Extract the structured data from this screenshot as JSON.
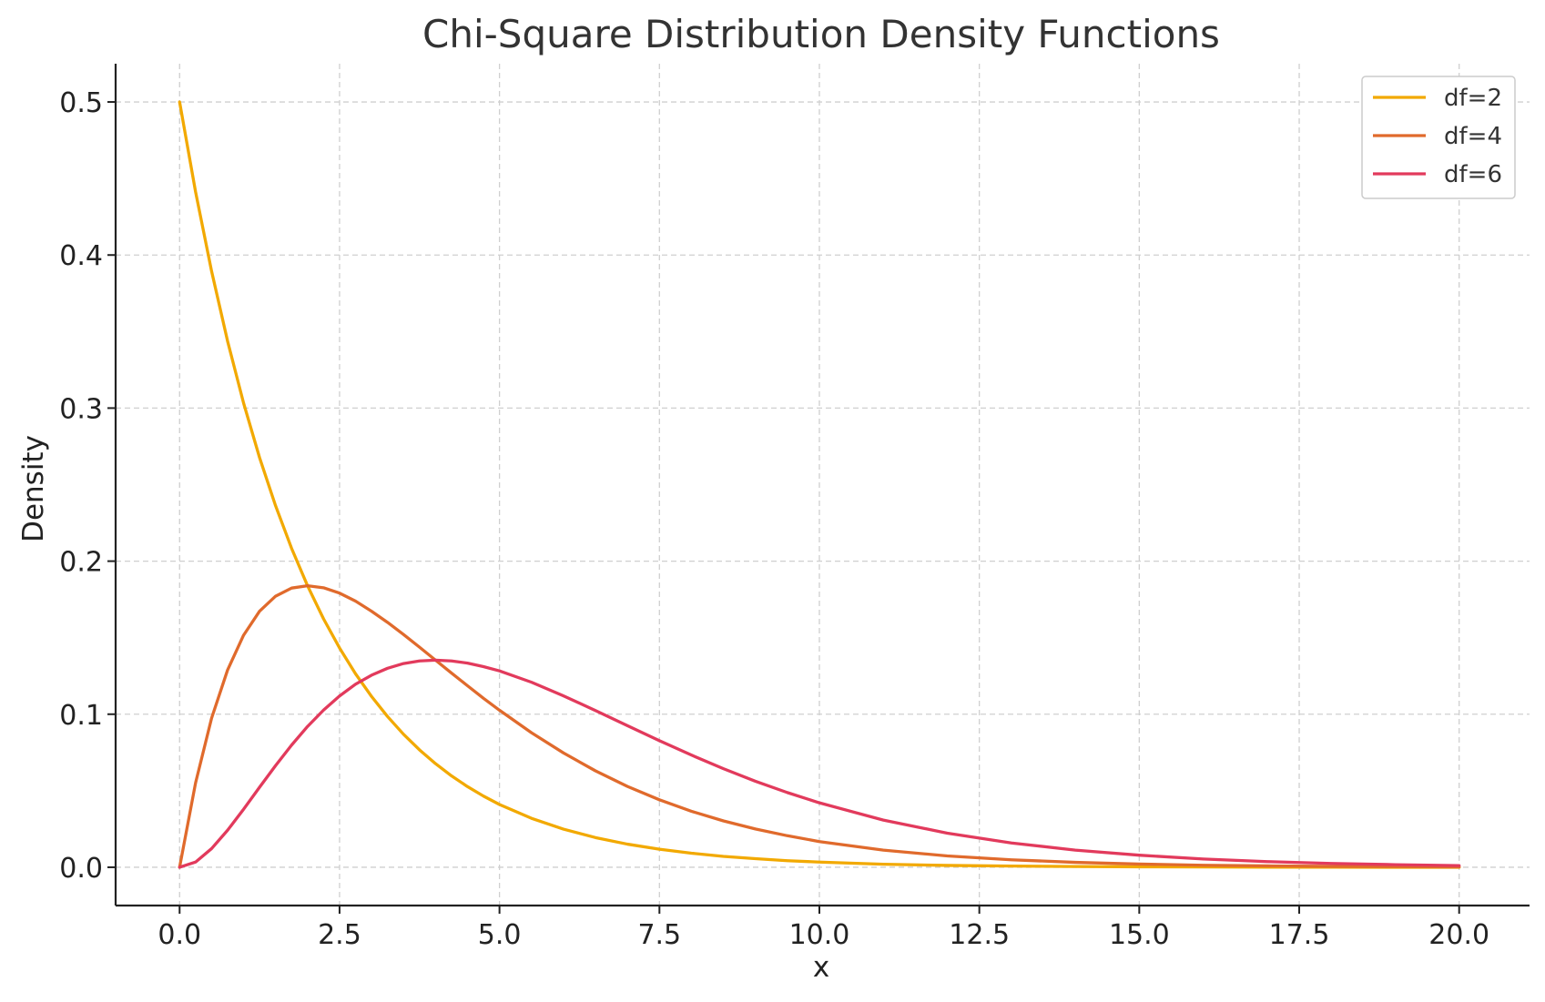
{
  "chart_data": {
    "type": "line",
    "title": "Chi-Square Distribution Density Functions",
    "xlabel": "x",
    "ylabel": "Density",
    "xlim": [
      -1,
      21.1
    ],
    "ylim": [
      -0.025,
      0.525
    ],
    "x_ticks": [
      0.0,
      2.5,
      5.0,
      7.5,
      10.0,
      12.5,
      15.0,
      17.5,
      20.0
    ],
    "x_tick_labels": [
      "0.0",
      "2.5",
      "5.0",
      "7.5",
      "10.0",
      "12.5",
      "15.0",
      "17.5",
      "20.0"
    ],
    "y_ticks": [
      0.0,
      0.1,
      0.2,
      0.3,
      0.4,
      0.5
    ],
    "y_tick_labels": [
      "0.0",
      "0.1",
      "0.2",
      "0.3",
      "0.4",
      "0.5"
    ],
    "grid": true,
    "legend_position": "top-right",
    "x": [
      0,
      0.25,
      0.5,
      0.75,
      1,
      1.25,
      1.5,
      1.75,
      2,
      2.25,
      2.5,
      2.75,
      3,
      3.25,
      3.5,
      3.75,
      4,
      4.25,
      4.5,
      4.75,
      5,
      5.5,
      6,
      6.5,
      7,
      7.5,
      8,
      8.5,
      9,
      9.5,
      10,
      11,
      12,
      13,
      14,
      15,
      16,
      17,
      18,
      19,
      20
    ],
    "series": [
      {
        "name": "df=2",
        "color": "#F2A900",
        "values": [
          0.5,
          0.4412,
          0.3894,
          0.3437,
          0.3033,
          0.2676,
          0.2362,
          0.2084,
          0.1839,
          0.1623,
          0.1433,
          0.1264,
          0.1116,
          0.0985,
          0.0869,
          0.0767,
          0.0677,
          0.0597,
          0.0527,
          0.0465,
          0.041,
          0.032,
          0.0249,
          0.0194,
          0.0151,
          0.0118,
          0.0092,
          0.0071,
          0.0056,
          0.0043,
          0.0034,
          0.002,
          0.0012,
          0.0008,
          0.0005,
          0.0003,
          0.0002,
          0.0001,
          0.0001,
          0.0,
          0.0
        ]
      },
      {
        "name": "df=4",
        "color": "#E06A2C",
        "values": [
          0.0,
          0.0552,
          0.0974,
          0.1289,
          0.1516,
          0.1673,
          0.1771,
          0.1824,
          0.1839,
          0.1826,
          0.1791,
          0.1739,
          0.1673,
          0.16,
          0.1521,
          0.1438,
          0.1353,
          0.1269,
          0.1186,
          0.1104,
          0.1026,
          0.0879,
          0.0747,
          0.063,
          0.0528,
          0.0441,
          0.0366,
          0.0303,
          0.025,
          0.0206,
          0.0168,
          0.0112,
          0.0074,
          0.0049,
          0.0032,
          0.0021,
          0.0013,
          0.0009,
          0.0006,
          0.0004,
          0.0002
        ]
      },
      {
        "name": "df=6",
        "color": "#E23A5C",
        "values": [
          0.0,
          0.0034,
          0.0122,
          0.0242,
          0.0379,
          0.0523,
          0.0664,
          0.0798,
          0.092,
          0.1027,
          0.1119,
          0.1196,
          0.1255,
          0.13,
          0.1331,
          0.1348,
          0.1353,
          0.1348,
          0.1334,
          0.1311,
          0.1283,
          0.1209,
          0.112,
          0.1024,
          0.0925,
          0.0827,
          0.0733,
          0.0644,
          0.0562,
          0.0488,
          0.0421,
          0.0308,
          0.0223,
          0.0159,
          0.0112,
          0.0079,
          0.0054,
          0.0037,
          0.0025,
          0.0017,
          0.0011
        ]
      }
    ]
  }
}
